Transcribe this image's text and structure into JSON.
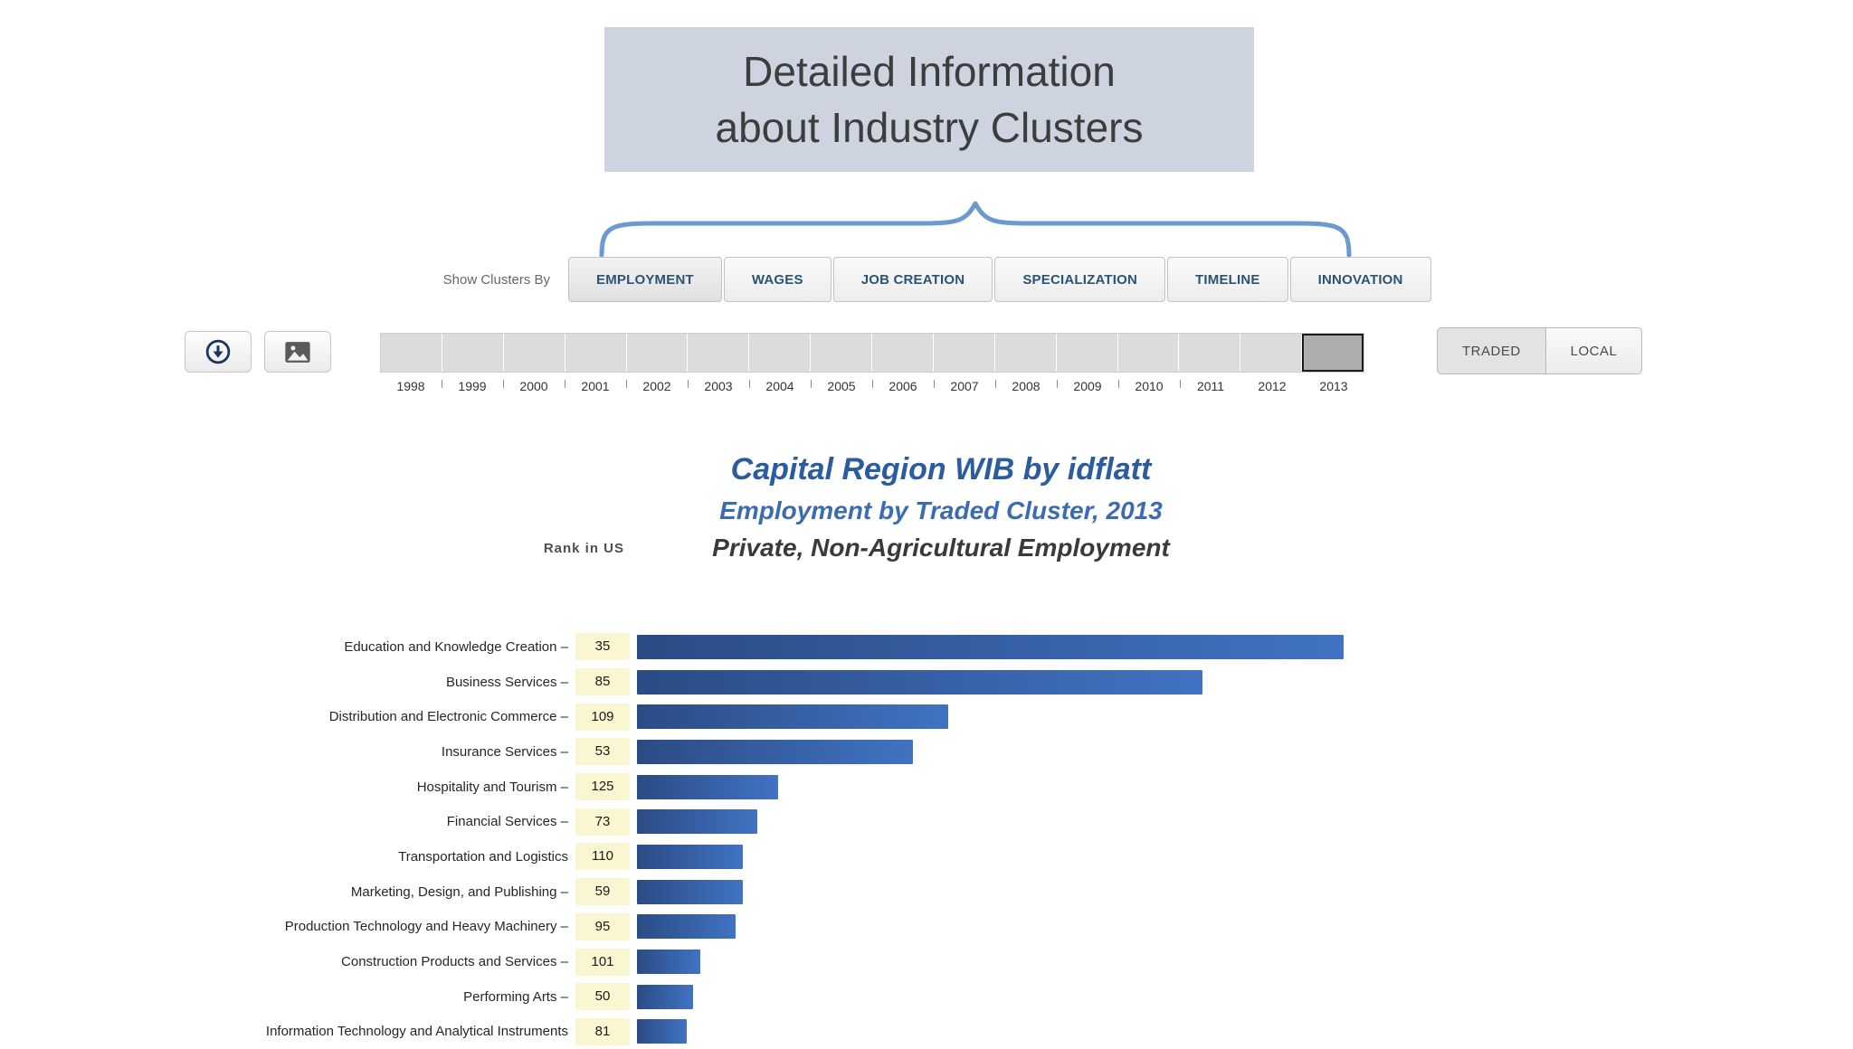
{
  "callout": {
    "line1": "Detailed Information",
    "line2": "about Industry Clusters"
  },
  "toolbar": {
    "show_clusters_label": "Show Clusters By",
    "active_tab": "EMPLOYMENT",
    "tabs": [
      "EMPLOYMENT",
      "WAGES",
      "JOB CREATION",
      "SPECIALIZATION",
      "TIMELINE",
      "INNOVATION"
    ]
  },
  "timeline": {
    "years": [
      "1998",
      "1999",
      "2000",
      "2001",
      "2002",
      "2003",
      "2004",
      "2005",
      "2006",
      "2007",
      "2008",
      "2009",
      "2010",
      "2011",
      "2012",
      "2013"
    ],
    "selected_year": "2013"
  },
  "region_toggle": {
    "traded_label": "TRADED",
    "local_label": "LOCAL",
    "selected": "TRADED"
  },
  "chart_data": {
    "type": "bar",
    "orientation": "horizontal",
    "title": "Capital Region WIB by idflatt",
    "subtitle": "Employment by Traded Cluster, 2013",
    "note": "Private, Non-Agricultural Employment",
    "rank_header": "Rank in US",
    "categories": [
      "Education and Knowledge Creation",
      "Business Services",
      "Distribution and Electronic Commerce",
      "Insurance Services",
      "Hospitality and Tourism",
      "Financial Services",
      "Transportation and Logistics",
      "Marketing, Design, and Publishing",
      "Production Technology and Heavy Machinery",
      "Construction Products and Services",
      "Performing Arts",
      "Information Technology and Analytical Instruments"
    ],
    "ranks": [
      35,
      85,
      109,
      53,
      125,
      73,
      110,
      59,
      95,
      101,
      50,
      81
    ],
    "values": [
      100,
      80,
      44,
      39,
      20,
      17,
      15,
      15,
      14,
      9,
      8,
      7
    ],
    "values_unit": "relative bar length (max = 100); absolute employment values are not labeled in the chart",
    "label_dash_suffix": [
      true,
      true,
      true,
      true,
      true,
      true,
      false,
      true,
      true,
      true,
      true,
      false
    ]
  },
  "colors": {
    "callout_bg": "#cdd3df",
    "brace": "#6b9ace",
    "tab_text": "#2d5373",
    "title_primary": "#2b5c9e",
    "title_secondary": "#3b6cb0",
    "rank_cell_bg": "#fbf6d2",
    "bar_gradient_start": "#2b4b85",
    "bar_gradient_end": "#4173c2",
    "selected_segment_bg": "#adadad"
  }
}
